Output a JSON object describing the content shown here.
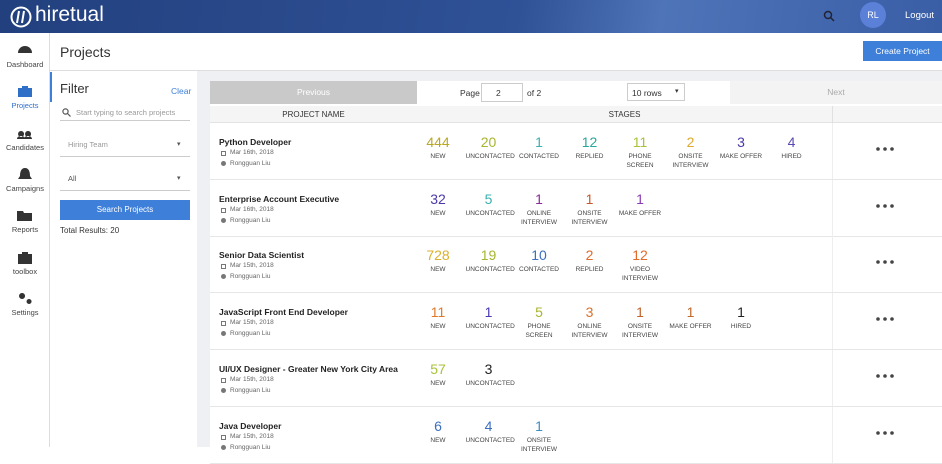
{
  "topbar": {
    "logo": "hiretual",
    "avatar": "RL",
    "logout": "Logout"
  },
  "sidebar": [
    "Dashboard",
    "Projects",
    "Candidates",
    "Campaigns",
    "Reports",
    "toolbox",
    "Settings"
  ],
  "header": {
    "title": "Projects",
    "create_button": "Create Project"
  },
  "filter": {
    "title": "Filter",
    "clear": "Clear",
    "search_placeholder": "Start typing to search projects",
    "hiring_team": "Hiring Team",
    "status": "All",
    "search_button": "Search Projects",
    "total": "Total Results: 20"
  },
  "pagination": {
    "previous": "Previous",
    "page_label": "Page",
    "page": "2",
    "of": "of 2",
    "rows": "10 rows",
    "next": "Next"
  },
  "table": {
    "columns": [
      "PROJECT NAME",
      "STAGES"
    ],
    "rows": [
      {
        "name": "Python Developer",
        "date": "Mar 16th, 2018",
        "owner": "Rongguan Liu",
        "stages": [
          {
            "count": "444",
            "label": "NEW",
            "color": "#b9a825"
          },
          {
            "count": "20",
            "label": "UNCONTACTED",
            "color": "#a7b52f"
          },
          {
            "count": "1",
            "label": "CONTACTED",
            "color": "#3bb0b0"
          },
          {
            "count": "12",
            "label": "REPLIED",
            "color": "#2aa79b"
          },
          {
            "count": "11",
            "label": "PHONE SCREEN",
            "color": "#a8c23a"
          },
          {
            "count": "2",
            "label": "ONSITE INTERVIEW",
            "color": "#e0a82e"
          },
          {
            "count": "3",
            "label": "MAKE OFFER",
            "color": "#4a3aa8"
          },
          {
            "count": "4",
            "label": "HIRED",
            "color": "#5b4ab5"
          }
        ]
      },
      {
        "name": "Enterprise Account Executive",
        "date": "Mar 16th, 2018",
        "owner": "Rongguan Liu",
        "stages": [
          {
            "count": "32",
            "label": "NEW",
            "color": "#4a3aa8"
          },
          {
            "count": "5",
            "label": "UNCONTACTED",
            "color": "#3bb0b0"
          },
          {
            "count": "1",
            "label": "ONLINE INTERVIEW",
            "color": "#8a2a9a"
          },
          {
            "count": "1",
            "label": "ONSITE INTERVIEW",
            "color": "#c8562a"
          },
          {
            "count": "1",
            "label": "MAKE OFFER",
            "color": "#8a3ab0"
          }
        ]
      },
      {
        "name": "Senior Data Scientist",
        "date": "Mar 15th, 2018",
        "owner": "Rongguan Liu",
        "stages": [
          {
            "count": "728",
            "label": "NEW",
            "color": "#d9b12a"
          },
          {
            "count": "19",
            "label": "UNCONTACTED",
            "color": "#a7b52f"
          },
          {
            "count": "10",
            "label": "CONTACTED",
            "color": "#3a6fc2"
          },
          {
            "count": "2",
            "label": "REPLIED",
            "color": "#e06a2a"
          },
          {
            "count": "12",
            "label": "VIDEO INTERVIEW",
            "color": "#e06a2a"
          }
        ]
      },
      {
        "name": "JavaScript Front End Developer",
        "date": "Mar 15th, 2018",
        "owner": "Rongguan Liu",
        "stages": [
          {
            "count": "11",
            "label": "NEW",
            "color": "#e07a2a"
          },
          {
            "count": "1",
            "label": "UNCONTACTED",
            "color": "#4a3ab0"
          },
          {
            "count": "5",
            "label": "PHONE SCREEN",
            "color": "#a8b52f"
          },
          {
            "count": "3",
            "label": "ONLINE INTERVIEW",
            "color": "#d9712a"
          },
          {
            "count": "1",
            "label": "ONSITE INTERVIEW",
            "color": "#c0622a"
          },
          {
            "count": "1",
            "label": "MAKE OFFER",
            "color": "#c06a2a"
          },
          {
            "count": "1",
            "label": "HIRED",
            "color": "#222222"
          }
        ]
      },
      {
        "name": "UI/UX Designer - Greater New York City Area",
        "date": "Mar 15th, 2018",
        "owner": "Rongguan Liu",
        "stages": [
          {
            "count": "57",
            "label": "NEW",
            "color": "#a8c23a"
          },
          {
            "count": "3",
            "label": "UNCONTACTED",
            "color": "#222222"
          }
        ]
      },
      {
        "name": "Java Developer",
        "date": "Mar 15th, 2018",
        "owner": "Rongguan Liu",
        "stages": [
          {
            "count": "6",
            "label": "NEW",
            "color": "#3a6fc2"
          },
          {
            "count": "4",
            "label": "UNCONTACTED",
            "color": "#3a6fc2"
          },
          {
            "count": "1",
            "label": "ONSITE INTERVIEW",
            "color": "#3a8fc2"
          }
        ]
      }
    ]
  }
}
